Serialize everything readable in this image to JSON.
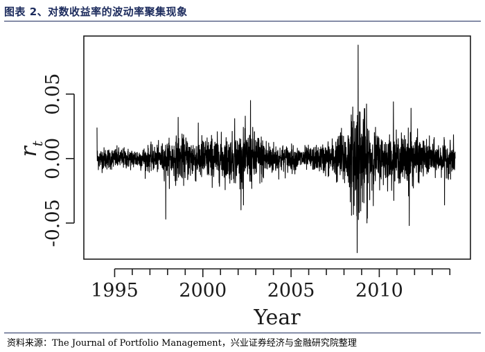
{
  "header": {
    "caption": "图表 2、对数收益率的波动率聚集现象"
  },
  "footer": {
    "source": "资料来源：The Journal of Portfolio Management，兴业证券经济与金融研究院整理"
  },
  "chart_data": {
    "type": "line",
    "xlabel": "Year",
    "ylabel": "r",
    "ylabel_subscript": "t",
    "xlim": [
      1994.0,
      2014.5
    ],
    "ylim": [
      -0.078,
      0.095
    ],
    "x_ticks": [
      1995,
      2000,
      2005,
      2010
    ],
    "x_minor_ticks": [
      1995,
      1996,
      1997,
      1998,
      1999,
      2000,
      2001,
      2002,
      2003,
      2004,
      2005,
      2006,
      2007,
      2008,
      2009,
      2010,
      2011,
      2012,
      2013,
      2014
    ],
    "y_ticks": [
      -0.05,
      0.0,
      0.05
    ],
    "y_tick_labels": [
      "-0.05",
      "0.00",
      "0.05"
    ],
    "grid": false,
    "series": [
      {
        "color": "#000000",
        "start_year": 1994.0,
        "end_year": 2014.3,
        "volatility_profile_x": [
          1994.0,
          1996.0,
          1997.5,
          1998.5,
          2000.0,
          2001.5,
          2002.5,
          2003.0,
          2004.0,
          2005.5,
          2006.5,
          2007.5,
          2008.3,
          2008.7,
          2009.0,
          2009.5,
          2010.0,
          2011.0,
          2011.8,
          2012.5,
          2013.5,
          2014.3
        ],
        "volatility_profile_sigma": [
          0.005,
          0.0045,
          0.006,
          0.0095,
          0.01,
          0.01,
          0.0125,
          0.012,
          0.007,
          0.005,
          0.0055,
          0.009,
          0.016,
          0.028,
          0.024,
          0.015,
          0.011,
          0.01,
          0.012,
          0.008,
          0.007,
          0.0075
        ],
        "extremes": [
          {
            "x": 1994.0,
            "y": 0.024
          },
          {
            "x": 1997.9,
            "y": -0.047
          },
          {
            "x": 1998.6,
            "y": 0.032
          },
          {
            "x": 2001.8,
            "y": 0.031
          },
          {
            "x": 2002.7,
            "y": 0.045
          },
          {
            "x": 2002.3,
            "y": -0.036
          },
          {
            "x": 2007.8,
            "y": 0.02
          },
          {
            "x": 2008.8,
            "y": 0.088
          },
          {
            "x": 2008.75,
            "y": -0.073
          },
          {
            "x": 2009.3,
            "y": -0.05
          },
          {
            "x": 2010.8,
            "y": 0.044
          },
          {
            "x": 2011.7,
            "y": -0.052
          },
          {
            "x": 2011.8,
            "y": 0.039
          },
          {
            "x": 2013.7,
            "y": -0.036
          }
        ]
      }
    ]
  }
}
